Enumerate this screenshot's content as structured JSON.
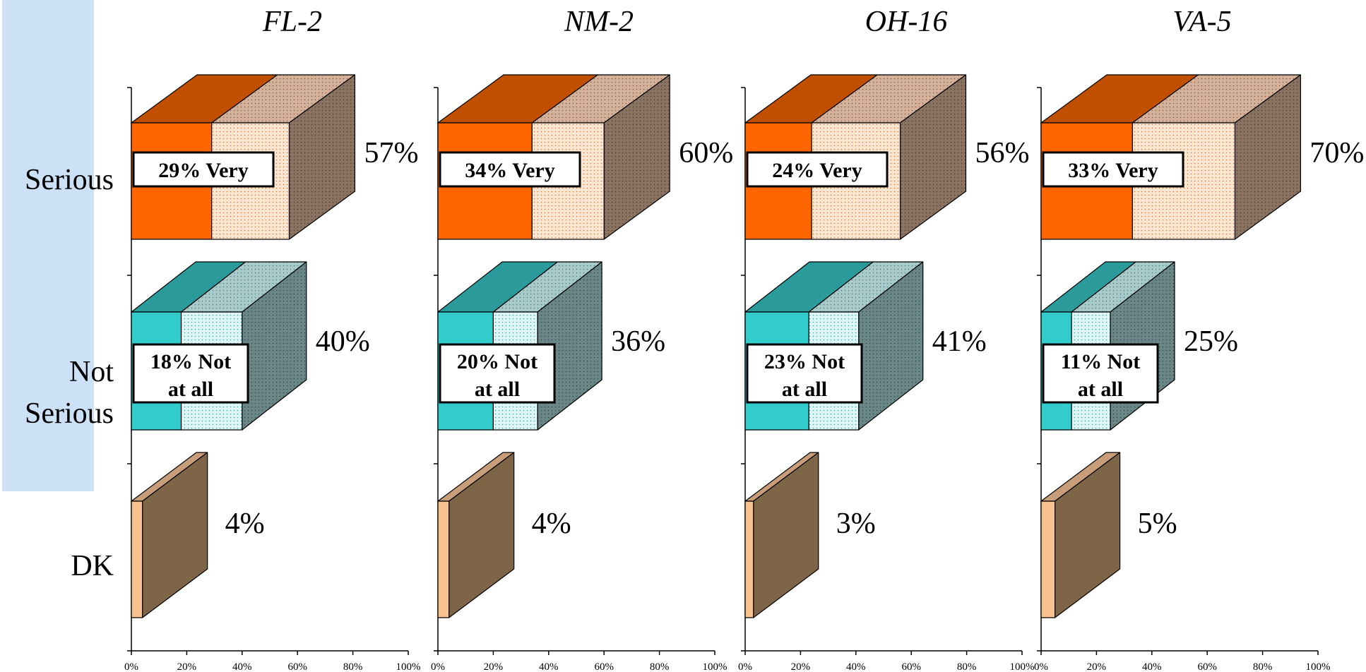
{
  "chart_data": {
    "type": "bar",
    "categories": [
      "Serious",
      "Not Serious",
      "DK"
    ],
    "category_lines": [
      [
        "Serious"
      ],
      [
        "Not",
        "Serious"
      ],
      [
        "DK"
      ]
    ],
    "xlim": [
      0,
      100
    ],
    "x_ticks": [
      "0%",
      "20%",
      "40%",
      "60%",
      "80%",
      "100%"
    ],
    "colors": {
      "serious_front": "#ff6600",
      "serious_front_light": "#fde0c6",
      "serious_top": "#c04f00",
      "serious_top_light": "#c9a48c",
      "serious_side": "#7f6a58",
      "notserious_front": "#33cccc",
      "notserious_front_light": "#d8f4f4",
      "notserious_top": "#2a9a9a",
      "notserious_top_light": "#9fc4c4",
      "notserious_side": "#5f7c7c",
      "dk_front": "#f7c28e",
      "dk_top": "#c89e7a",
      "dk_side": "#7f6548"
    },
    "panels": [
      {
        "title": "FL-2",
        "series": [
          {
            "category": "Serious",
            "total": 57,
            "total_label": "57%",
            "sub": 29,
            "sub_label": [
              "29% Very"
            ]
          },
          {
            "category": "Not Serious",
            "total": 40,
            "total_label": "40%",
            "sub": 18,
            "sub_label": [
              "18% Not",
              "at all"
            ]
          },
          {
            "category": "DK",
            "total": 4,
            "total_label": "4%"
          }
        ]
      },
      {
        "title": "NM-2",
        "series": [
          {
            "category": "Serious",
            "total": 60,
            "total_label": "60%",
            "sub": 34,
            "sub_label": [
              "34% Very"
            ]
          },
          {
            "category": "Not Serious",
            "total": 36,
            "total_label": "36%",
            "sub": 20,
            "sub_label": [
              "20% Not",
              "at all"
            ]
          },
          {
            "category": "DK",
            "total": 4,
            "total_label": "4%"
          }
        ]
      },
      {
        "title": "OH-16",
        "series": [
          {
            "category": "Serious",
            "total": 56,
            "total_label": "56%",
            "sub": 24,
            "sub_label": [
              "24% Very"
            ]
          },
          {
            "category": "Not Serious",
            "total": 41,
            "total_label": "41%",
            "sub": 23,
            "sub_label": [
              "23% Not",
              "at all"
            ]
          },
          {
            "category": "DK",
            "total": 3,
            "total_label": "3%"
          }
        ]
      },
      {
        "title": "VA-5",
        "series": [
          {
            "category": "Serious",
            "total": 70,
            "total_label": "70%",
            "sub": 33,
            "sub_label": [
              "33% Very"
            ]
          },
          {
            "category": "Not Serious",
            "total": 25,
            "total_label": "25%",
            "sub": 11,
            "sub_label": [
              "11% Not",
              "at all"
            ]
          },
          {
            "category": "DK",
            "total": 5,
            "total_label": "5%"
          }
        ]
      }
    ]
  }
}
